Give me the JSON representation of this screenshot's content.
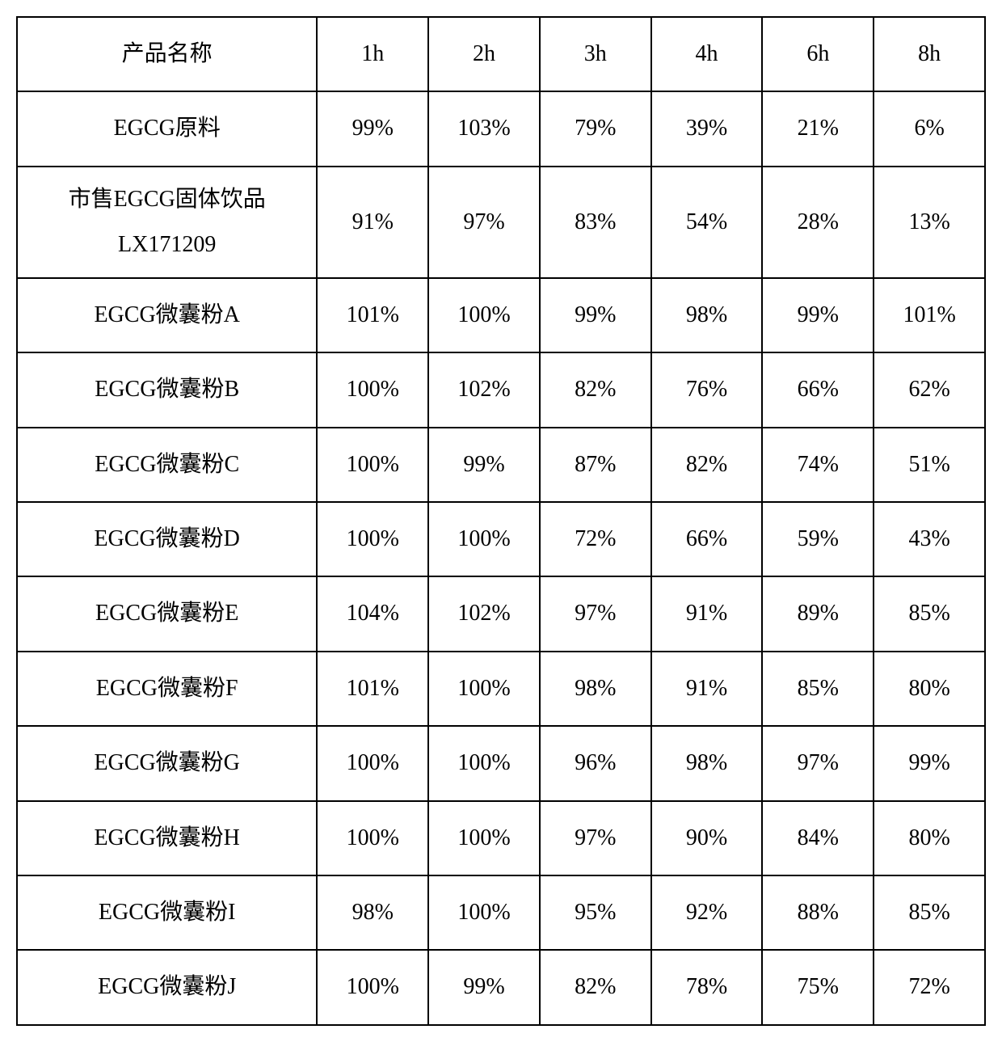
{
  "table": {
    "type": "table",
    "columns": [
      "产品名称",
      "1h",
      "2h",
      "3h",
      "4h",
      "6h",
      "8h"
    ],
    "rows": [
      {
        "name": "EGCG原料",
        "values": [
          "99%",
          "103%",
          "79%",
          "39%",
          "21%",
          "6%"
        ]
      },
      {
        "name_line1": "市售EGCG固体饮品",
        "name_line2": "LX171209",
        "multiline": true,
        "values": [
          "91%",
          "97%",
          "83%",
          "54%",
          "28%",
          "13%"
        ]
      },
      {
        "name": "EGCG微囊粉A",
        "values": [
          "101%",
          "100%",
          "99%",
          "98%",
          "99%",
          "101%"
        ]
      },
      {
        "name": "EGCG微囊粉B",
        "values": [
          "100%",
          "102%",
          "82%",
          "76%",
          "66%",
          "62%"
        ]
      },
      {
        "name": "EGCG微囊粉C",
        "values": [
          "100%",
          "99%",
          "87%",
          "82%",
          "74%",
          "51%"
        ]
      },
      {
        "name": "EGCG微囊粉D",
        "values": [
          "100%",
          "100%",
          "72%",
          "66%",
          "59%",
          "43%"
        ]
      },
      {
        "name": "EGCG微囊粉E",
        "values": [
          "104%",
          "102%",
          "97%",
          "91%",
          "89%",
          "85%"
        ]
      },
      {
        "name": "EGCG微囊粉F",
        "values": [
          "101%",
          "100%",
          "98%",
          "91%",
          "85%",
          "80%"
        ]
      },
      {
        "name": "EGCG微囊粉G",
        "values": [
          "100%",
          "100%",
          "96%",
          "98%",
          "97%",
          "99%"
        ]
      },
      {
        "name": "EGCG微囊粉H",
        "values": [
          "100%",
          "100%",
          "97%",
          "90%",
          "84%",
          "80%"
        ]
      },
      {
        "name": "EGCG微囊粉I",
        "values": [
          "98%",
          "100%",
          "95%",
          "92%",
          "88%",
          "85%"
        ]
      },
      {
        "name": "EGCG微囊粉J",
        "values": [
          "100%",
          "99%",
          "82%",
          "78%",
          "75%",
          "72%"
        ]
      }
    ],
    "border_color": "#000000",
    "background_color": "#ffffff",
    "font_size": 28,
    "text_color": "#000000"
  }
}
